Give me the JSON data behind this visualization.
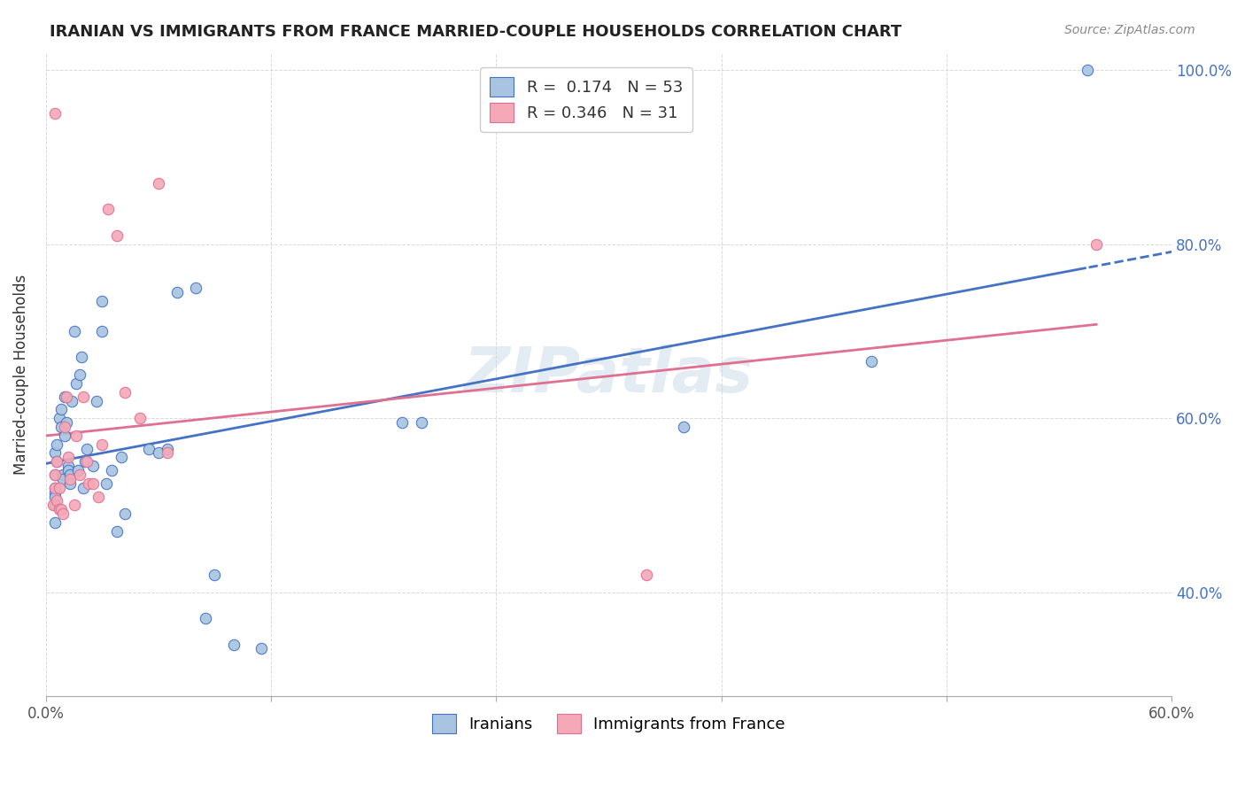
{
  "title": "IRANIAN VS IMMIGRANTS FROM FRANCE MARRIED-COUPLE HOUSEHOLDS CORRELATION CHART",
  "source": "Source: ZipAtlas.com",
  "xlabel": "",
  "ylabel": "Married-couple Households",
  "xlim": [
    0.0,
    0.6
  ],
  "ylim": [
    0.28,
    1.02
  ],
  "xtick_labels": [
    "0.0%",
    "",
    "",
    "",
    "",
    "60.0%"
  ],
  "ytick_labels": [
    "40.0%",
    "60.0%",
    "80.0%",
    "100.0%"
  ],
  "ytick_positions": [
    0.4,
    0.6,
    0.8,
    1.0
  ],
  "xtick_positions": [
    0.0,
    0.12,
    0.24,
    0.36,
    0.48,
    0.6
  ],
  "legend_labels": [
    "Iranians",
    "Immigrants from France"
  ],
  "color_iranians": "#a8c4e0",
  "color_france": "#f4a8b8",
  "line_color_iranians": "#4472c4",
  "line_color_france": "#e07090",
  "r_iranians": 0.174,
  "n_iranians": 53,
  "r_france": 0.346,
  "n_france": 31,
  "watermark": "ZIPatlas",
  "iranians_x": [
    0.005,
    0.005,
    0.005,
    0.005,
    0.005,
    0.005,
    0.005,
    0.006,
    0.006,
    0.007,
    0.008,
    0.008,
    0.009,
    0.009,
    0.01,
    0.01,
    0.011,
    0.012,
    0.012,
    0.013,
    0.013,
    0.014,
    0.015,
    0.016,
    0.017,
    0.018,
    0.019,
    0.02,
    0.021,
    0.022,
    0.025,
    0.027,
    0.03,
    0.03,
    0.032,
    0.035,
    0.038,
    0.04,
    0.042,
    0.055,
    0.06,
    0.065,
    0.07,
    0.08,
    0.085,
    0.09,
    0.1,
    0.115,
    0.19,
    0.2,
    0.34,
    0.44,
    0.555
  ],
  "iranians_y": [
    0.56,
    0.535,
    0.52,
    0.515,
    0.51,
    0.5,
    0.48,
    0.57,
    0.55,
    0.6,
    0.61,
    0.59,
    0.535,
    0.53,
    0.625,
    0.58,
    0.595,
    0.545,
    0.54,
    0.535,
    0.525,
    0.62,
    0.7,
    0.64,
    0.54,
    0.65,
    0.67,
    0.52,
    0.55,
    0.565,
    0.545,
    0.62,
    0.735,
    0.7,
    0.525,
    0.54,
    0.47,
    0.555,
    0.49,
    0.565,
    0.56,
    0.565,
    0.745,
    0.75,
    0.37,
    0.42,
    0.34,
    0.335,
    0.595,
    0.595,
    0.59,
    0.665,
    1.0
  ],
  "france_x": [
    0.004,
    0.005,
    0.005,
    0.006,
    0.006,
    0.007,
    0.007,
    0.008,
    0.009,
    0.01,
    0.011,
    0.012,
    0.013,
    0.015,
    0.016,
    0.018,
    0.02,
    0.022,
    0.023,
    0.025,
    0.028,
    0.03,
    0.033,
    0.038,
    0.042,
    0.05,
    0.06,
    0.065,
    0.32,
    0.56,
    0.005
  ],
  "france_y": [
    0.5,
    0.535,
    0.52,
    0.55,
    0.505,
    0.52,
    0.495,
    0.495,
    0.49,
    0.59,
    0.625,
    0.555,
    0.53,
    0.5,
    0.58,
    0.535,
    0.625,
    0.55,
    0.525,
    0.525,
    0.51,
    0.57,
    0.84,
    0.81,
    0.63,
    0.6,
    0.87,
    0.56,
    0.42,
    0.8,
    0.95
  ]
}
